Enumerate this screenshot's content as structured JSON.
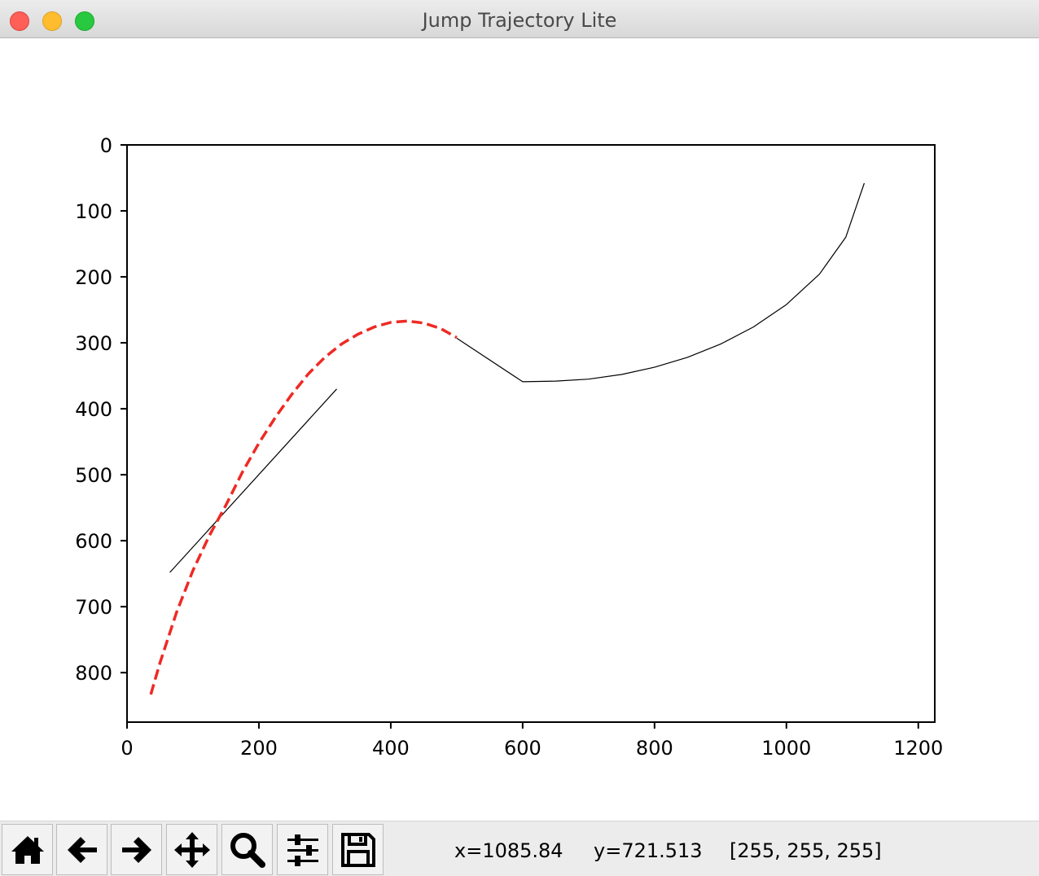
{
  "window": {
    "title": "Jump Trajectory Lite"
  },
  "chart_data": {
    "type": "line",
    "xlim": [
      0,
      1225
    ],
    "ylim": [
      875,
      0
    ],
    "y_inverted": true,
    "grid": false,
    "x_ticks": [
      0,
      200,
      400,
      600,
      800,
      1000,
      1200
    ],
    "y_ticks": [
      0,
      100,
      200,
      300,
      400,
      500,
      600,
      700,
      800
    ],
    "series": [
      {
        "style": "solid",
        "color": "#000000",
        "x": [
          65,
          318
        ],
        "y": [
          648,
          370
        ]
      },
      {
        "style": "solid",
        "color": "#000000",
        "x": [
          500,
          600,
          650,
          700,
          750,
          800,
          850,
          900,
          950,
          1000,
          1050,
          1090,
          1118
        ],
        "y": [
          293,
          359,
          358,
          355,
          348,
          337,
          322,
          302,
          276,
          242,
          196,
          140,
          58
        ]
      },
      {
        "style": "dashed",
        "color": "#ee2a24",
        "x": [
          36,
          50,
          75,
          100,
          125,
          150,
          175,
          200,
          225,
          250,
          275,
          300,
          325,
          350,
          375,
          400,
          425,
          450,
          475,
          500
        ],
        "y": [
          833,
          785,
          709,
          645,
          592,
          546,
          496,
          452,
          413,
          378,
          347,
          322,
          302,
          287,
          276,
          269,
          267,
          270,
          278,
          292
        ]
      }
    ]
  },
  "toolbar": {
    "buttons": [
      {
        "name": "home-button",
        "icon": "home-icon"
      },
      {
        "name": "back-button",
        "icon": "arrow-left-icon"
      },
      {
        "name": "forward-button",
        "icon": "arrow-right-icon"
      },
      {
        "name": "pan-button",
        "icon": "move-icon"
      },
      {
        "name": "zoom-button",
        "icon": "magnifier-icon"
      },
      {
        "name": "configure-subplots-button",
        "icon": "sliders-icon"
      },
      {
        "name": "save-button",
        "icon": "floppy-disk-icon"
      }
    ],
    "status": {
      "x": "x=1085.84",
      "y": "y=721.513",
      "rgb": "[255, 255, 255]"
    }
  }
}
